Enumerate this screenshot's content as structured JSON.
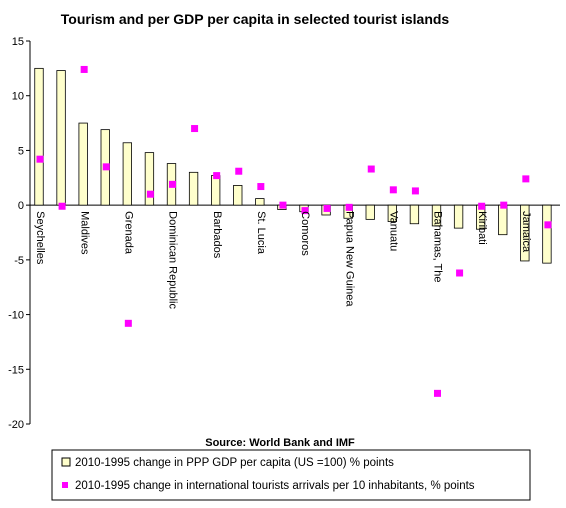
{
  "chart_data": {
    "type": "bar",
    "title": "Tourism and per GDP per capita in selected tourist islands",
    "source": "Source: World Bank and IMF",
    "ylim": [
      -20,
      15
    ],
    "yticks": [
      15,
      10,
      5,
      0,
      -5,
      -10,
      -15,
      -20
    ],
    "grid": false,
    "legend_position": "bottom",
    "categories": [
      "Seychelles",
      "",
      "Maldives",
      "",
      "Grenada",
      "",
      "Dominican Republic",
      "",
      "Barbados",
      "",
      "St. Lucia",
      "",
      "Comoros",
      "",
      "Papua New Guinea",
      "",
      "Vanuatu",
      "",
      "Bahamas, The",
      "",
      "Kiribati",
      "",
      "Jamaica",
      ""
    ],
    "series": [
      {
        "name": "2010-1995 change in PPP GDP per capita (US =100) % points",
        "type": "bar",
        "color": "#ffffcc",
        "values": [
          12.5,
          12.3,
          7.5,
          6.9,
          5.7,
          4.8,
          3.8,
          3.0,
          2.7,
          1.8,
          0.6,
          -0.4,
          -0.6,
          -0.9,
          -1.2,
          -1.3,
          -1.5,
          -1.7,
          -1.9,
          -2.1,
          -2.2,
          -2.7,
          -5.1,
          -5.3
        ]
      },
      {
        "name": "2010-1995 change in international tourists arrivals per 10 inhabitants, % points",
        "type": "scatter",
        "color": "#ff00ff",
        "values": [
          4.2,
          -0.1,
          12.4,
          3.5,
          -10.8,
          1.0,
          1.9,
          7.0,
          2.7,
          3.1,
          1.7,
          0.0,
          -0.5,
          -0.3,
          -0.2,
          3.3,
          1.4,
          1.3,
          -17.2,
          -6.2,
          -0.1,
          0.0,
          2.4,
          -1.8
        ]
      }
    ]
  },
  "colors": {
    "bar_fill": "#ffffcc",
    "bar_stroke": "#000000",
    "marker": "#ff00ff",
    "axis": "#000000"
  }
}
